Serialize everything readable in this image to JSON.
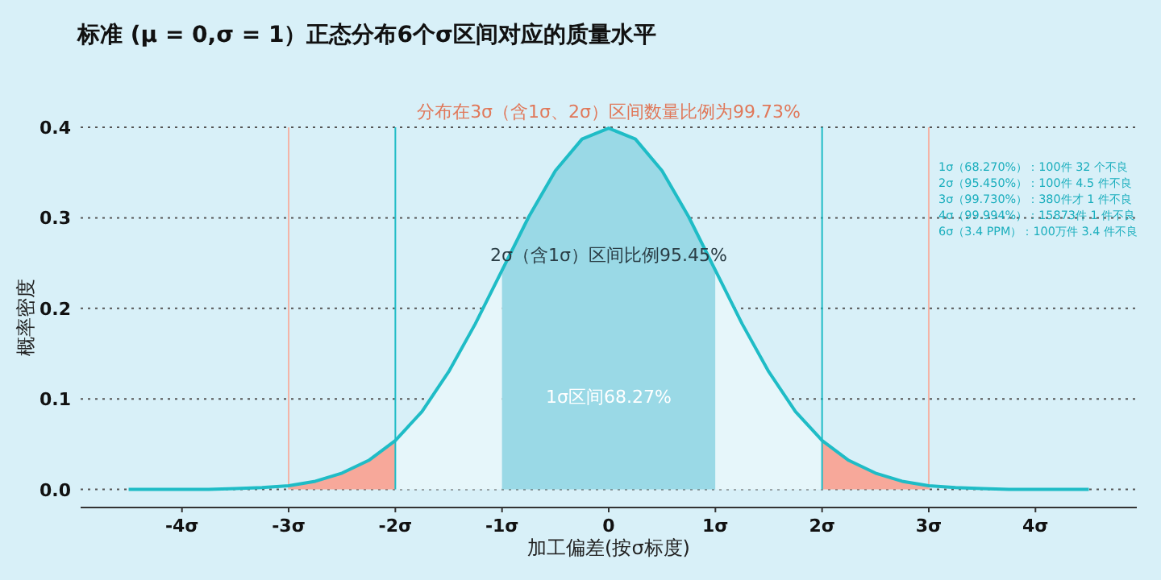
{
  "chart_data": {
    "type": "line",
    "title": "标准 (μ = 0,σ = 1）正态分布6个σ区间对应的质量水平",
    "xlabel": "加工偏差(按σ标度)",
    "ylabel": "概率密度",
    "x": [
      -4.5,
      -4.25,
      -4,
      -3.75,
      -3.5,
      -3.25,
      -3,
      -2.75,
      -2.5,
      -2.25,
      -2,
      -1.75,
      -1.5,
      -1.25,
      -1,
      -0.75,
      -0.5,
      -0.25,
      0,
      0.25,
      0.5,
      0.75,
      1,
      1.25,
      1.5,
      1.75,
      2,
      2.25,
      2.5,
      2.75,
      3,
      3.25,
      3.5,
      3.75,
      4,
      4.25,
      4.5
    ],
    "series": [
      {
        "type": "area",
        "color": "#f7a89a",
        "x": [
          -3,
          -2.75,
          -2.5,
          -2.25,
          -2
        ],
        "values": [
          0.004,
          0.009,
          0.018,
          0.032,
          0.054
        ]
      },
      {
        "type": "area",
        "color": "#e6f6fa",
        "x": [
          -2,
          -1.75,
          -1.5,
          -1.25,
          -1
        ],
        "values": [
          0.054,
          0.086,
          0.13,
          0.183,
          0.242
        ]
      },
      {
        "type": "area",
        "color": "#9ad9e6",
        "x": [
          -1,
          -0.75,
          -0.5,
          -0.25,
          0,
          0.25,
          0.5,
          0.75,
          1
        ],
        "values": [
          0.242,
          0.301,
          0.352,
          0.387,
          0.399,
          0.387,
          0.352,
          0.301,
          0.242
        ]
      },
      {
        "type": "area",
        "color": "#e6f6fa",
        "x": [
          1,
          1.25,
          1.5,
          1.75,
          2
        ],
        "values": [
          0.242,
          0.183,
          0.13,
          0.086,
          0.054
        ]
      },
      {
        "type": "area",
        "color": "#f7a89a",
        "x": [
          2,
          2.25,
          2.5,
          2.75,
          3
        ],
        "values": [
          0.054,
          0.032,
          0.018,
          0.009,
          0.004
        ]
      },
      {
        "color": "#1fbcc6",
        "values": [
          0.0,
          0.0,
          0.0,
          0.0,
          0.001,
          0.002,
          0.004,
          0.009,
          0.018,
          0.032,
          0.054,
          0.086,
          0.13,
          0.183,
          0.242,
          0.301,
          0.352,
          0.387,
          0.399,
          0.387,
          0.352,
          0.301,
          0.242,
          0.183,
          0.13,
          0.086,
          0.054,
          0.032,
          0.018,
          0.009,
          0.004,
          0.002,
          0.001,
          0.0,
          0.0,
          0.0,
          0.0
        ]
      }
    ],
    "xlim": [
      -4.95,
      4.95
    ],
    "ylim": [
      -0.02,
      0.4
    ],
    "xticks": [
      {
        "value": -4,
        "label": "-4σ"
      },
      {
        "value": -3,
        "label": "-3σ"
      },
      {
        "value": -2,
        "label": "-2σ"
      },
      {
        "value": -1,
        "label": "-1σ"
      },
      0,
      {
        "value": 1,
        "label": "1σ"
      },
      {
        "value": 2,
        "label": "2σ"
      },
      {
        "value": 3,
        "label": "3σ"
      },
      {
        "value": 4,
        "label": "4σ"
      }
    ],
    "yticks": [
      {
        "value": 0,
        "label": "0.0"
      },
      0.1,
      0.2,
      0.3,
      0.4
    ],
    "grid": "y",
    "line_style": "solid",
    "marker": "none",
    "ref_lines": [
      {
        "axis": "x",
        "value": -3,
        "color": "#f4b3a6"
      },
      {
        "axis": "x",
        "value": 3,
        "color": "#f4b3a6"
      },
      {
        "axis": "x",
        "value": -2,
        "color": "#1fbcc6"
      },
      {
        "axis": "x",
        "value": 2,
        "color": "#1fbcc6"
      }
    ],
    "annotations": [
      "分布在3σ（含1σ、2σ）区间数量比例为99.73%",
      "2σ（含1σ）区间比例95.45%",
      "1σ区间68.27%",
      "1σ（68.270%）：100件 32 个不良",
      "2σ（95.450%）：100件 4.5 件不良",
      "3σ（99.730%）：380件才 1 件不良",
      "4σ（99.994%）：15873件 1 件不良",
      "6σ（3.4 PPM）：100万件 3.4 件不良"
    ]
  }
}
